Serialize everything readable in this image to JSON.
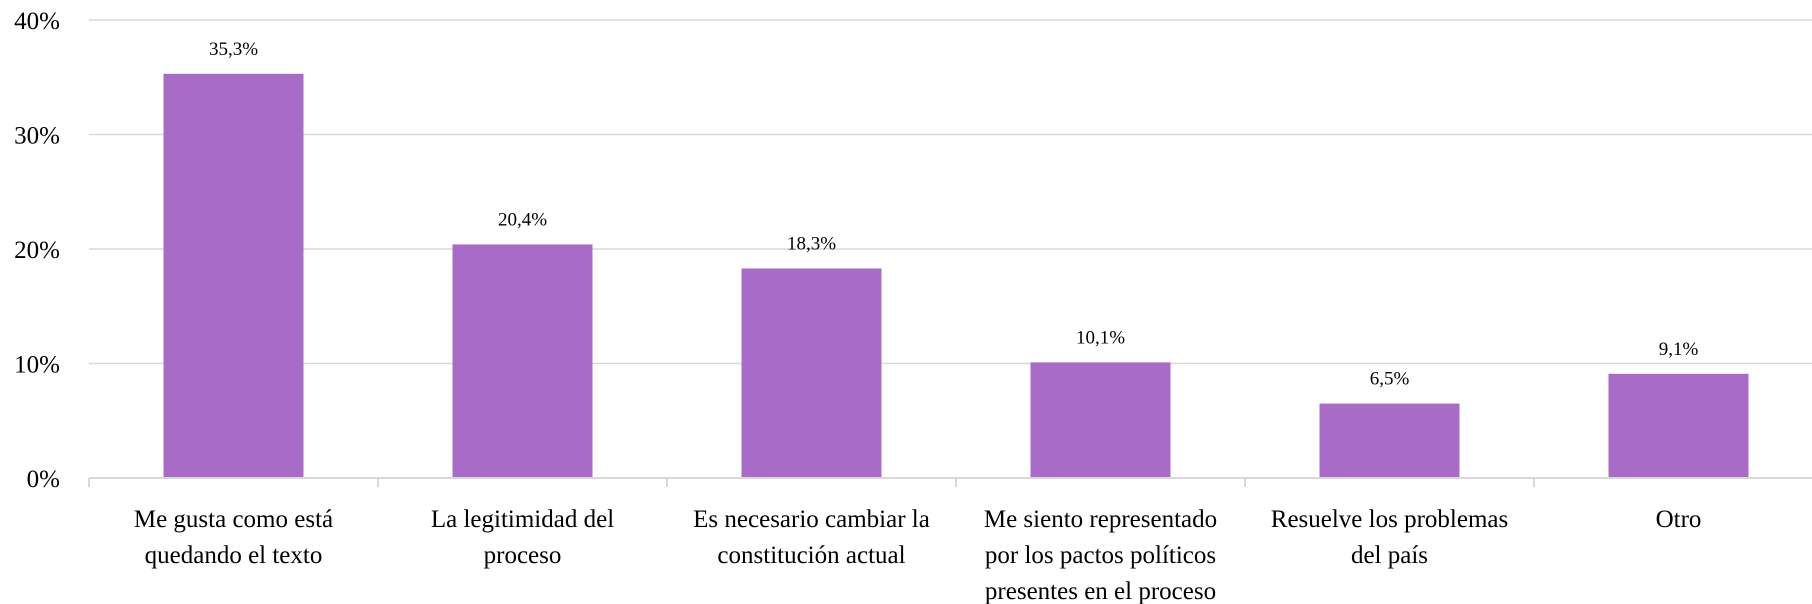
{
  "chart_data": {
    "type": "bar",
    "title": "",
    "xlabel": "",
    "ylabel": "",
    "ylim": [
      0,
      40
    ],
    "yticks": [
      "0%",
      "10%",
      "20%",
      "30%",
      "40%"
    ],
    "grid": true,
    "legend": "none",
    "categories": [
      [
        "Me gusta como está",
        "quedando el texto"
      ],
      [
        "La legitimidad del",
        "proceso"
      ],
      [
        "Es necesario cambiar la",
        "constitución actual"
      ],
      [
        "Me  siento representado",
        "por los pactos políticos",
        "presentes en el proceso"
      ],
      [
        "Resuelve los problemas",
        "del país"
      ],
      [
        "Otro"
      ]
    ],
    "values": [
      35.3,
      20.4,
      18.3,
      10.1,
      6.5,
      9.1
    ],
    "data_labels": [
      "35,3%",
      "20,4%",
      "18,3%",
      "10,1%",
      "6,5%",
      "9,1%"
    ],
    "colors": {
      "bar": "#a86bc8",
      "grid": "#d9d9d9",
      "axis": "#d9d9d9"
    }
  }
}
